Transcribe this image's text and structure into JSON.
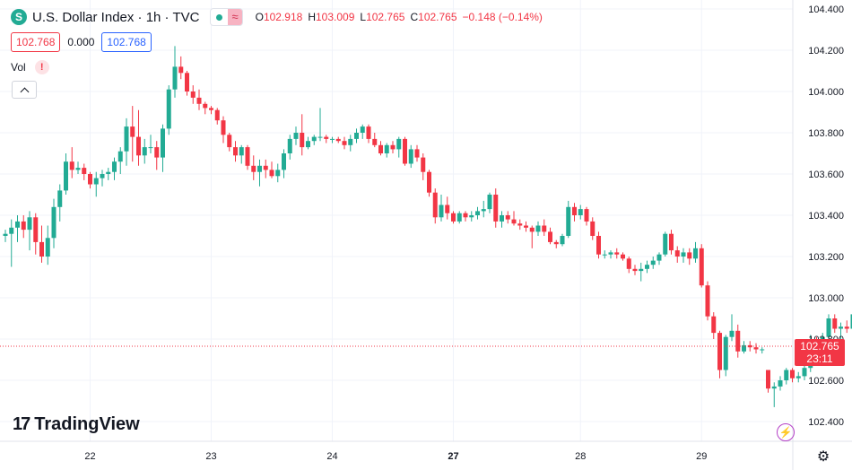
{
  "header": {
    "symbol_icon": "S",
    "title": "U.S. Dollar Index · 1h · TVC",
    "wave_icon": "≈",
    "ohlc": {
      "o_label": "O",
      "o_value": "102.918",
      "h_label": "H",
      "h_value": "103.009",
      "l_label": "L",
      "l_value": "102.765",
      "c_label": "C",
      "c_value": "102.765",
      "change": "−0.148 (−0.14%)"
    }
  },
  "value_row": {
    "price_left": "102.768",
    "spread": "0.000",
    "price_right": "102.768"
  },
  "volume": {
    "label": "Vol",
    "warning_icon": "!"
  },
  "brand": {
    "mark": "17",
    "name": "TradingView"
  },
  "last_price_label": {
    "price": "102.765",
    "countdown": "23:11"
  },
  "colors": {
    "up": "#22ab94",
    "down": "#f23645",
    "grid": "#f0f3fa",
    "text": "#131722"
  },
  "chart_data": {
    "type": "candlestick",
    "ylim": [
      102.3,
      104.5
    ],
    "y_ticks": [
      "104.400",
      "104.200",
      "104.000",
      "103.800",
      "103.600",
      "103.400",
      "103.200",
      "103.000",
      "102.800",
      "102.600",
      "102.400"
    ],
    "x_ticks": [
      {
        "label": "22",
        "bar": 14,
        "bold": false
      },
      {
        "label": "23",
        "bar": 34,
        "bold": false
      },
      {
        "label": "24",
        "bar": 54,
        "bold": false
      },
      {
        "label": "27",
        "bar": 74,
        "bold": true
      },
      {
        "label": "28",
        "bar": 95,
        "bold": false
      },
      {
        "label": "29",
        "bar": 115,
        "bold": false
      }
    ],
    "last_price": 102.765,
    "candles": [
      [
        103.3,
        103.33,
        103.27,
        103.31
      ],
      [
        103.31,
        103.38,
        103.15,
        103.34
      ],
      [
        103.34,
        103.4,
        103.27,
        103.37
      ],
      [
        103.37,
        103.4,
        103.29,
        103.33
      ],
      [
        103.33,
        103.42,
        103.23,
        103.39
      ],
      [
        103.39,
        103.41,
        103.21,
        103.27
      ],
      [
        103.27,
        103.35,
        103.17,
        103.2
      ],
      [
        103.2,
        103.35,
        103.16,
        103.29
      ],
      [
        103.29,
        103.48,
        103.24,
        103.44
      ],
      [
        103.44,
        103.55,
        103.37,
        103.52
      ],
      [
        103.52,
        103.7,
        103.5,
        103.66
      ],
      [
        103.66,
        103.73,
        103.58,
        103.62
      ],
      [
        103.62,
        103.66,
        103.6,
        103.63
      ],
      [
        103.63,
        103.65,
        103.57,
        103.6
      ],
      [
        103.6,
        103.61,
        103.53,
        103.55
      ],
      [
        103.55,
        103.61,
        103.49,
        103.58
      ],
      [
        103.58,
        103.62,
        103.54,
        103.6
      ],
      [
        103.6,
        103.63,
        103.57,
        103.61
      ],
      [
        103.61,
        103.68,
        103.57,
        103.66
      ],
      [
        103.66,
        103.73,
        103.6,
        103.71
      ],
      [
        103.71,
        103.87,
        103.64,
        103.83
      ],
      [
        103.83,
        103.93,
        103.66,
        103.78
      ],
      [
        103.78,
        103.91,
        103.64,
        103.69
      ],
      [
        103.69,
        103.77,
        103.65,
        103.73
      ],
      [
        103.73,
        103.79,
        103.7,
        103.73
      ],
      [
        103.73,
        103.76,
        103.62,
        103.68
      ],
      [
        103.68,
        103.84,
        103.61,
        103.82
      ],
      [
        103.82,
        104.03,
        103.79,
        104.01
      ],
      [
        104.01,
        104.22,
        103.97,
        104.12
      ],
      [
        104.12,
        104.17,
        104.06,
        104.09
      ],
      [
        104.09,
        104.1,
        103.98,
        104.0
      ],
      [
        104.0,
        104.03,
        103.94,
        103.97
      ],
      [
        103.97,
        104.01,
        103.91,
        103.94
      ],
      [
        103.94,
        103.95,
        103.89,
        103.92
      ],
      [
        103.92,
        103.93,
        103.89,
        103.91
      ],
      [
        103.91,
        103.92,
        103.84,
        103.86
      ],
      [
        103.86,
        103.88,
        103.75,
        103.79
      ],
      [
        103.79,
        103.8,
        103.71,
        103.73
      ],
      [
        103.73,
        103.76,
        103.66,
        103.69
      ],
      [
        103.69,
        103.74,
        103.65,
        103.73
      ],
      [
        103.73,
        103.74,
        103.62,
        103.64
      ],
      [
        103.64,
        103.69,
        103.57,
        103.61
      ],
      [
        103.61,
        103.67,
        103.54,
        103.64
      ],
      [
        103.64,
        103.67,
        103.58,
        103.62
      ],
      [
        103.62,
        103.66,
        103.58,
        103.59
      ],
      [
        103.59,
        103.65,
        103.56,
        103.62
      ],
      [
        103.62,
        103.72,
        103.58,
        103.7
      ],
      [
        103.7,
        103.79,
        103.67,
        103.77
      ],
      [
        103.77,
        103.83,
        103.74,
        103.8
      ],
      [
        103.8,
        103.89,
        103.69,
        103.73
      ],
      [
        103.73,
        103.78,
        103.72,
        103.76
      ],
      [
        103.76,
        103.79,
        103.74,
        103.78
      ],
      [
        103.78,
        103.92,
        103.76,
        103.78
      ],
      [
        103.78,
        103.79,
        103.75,
        103.77
      ],
      [
        103.77,
        103.78,
        103.75,
        103.77
      ],
      [
        103.77,
        103.78,
        103.75,
        103.76
      ],
      [
        103.76,
        103.78,
        103.72,
        103.74
      ],
      [
        103.74,
        103.79,
        103.71,
        103.77
      ],
      [
        103.77,
        103.82,
        103.75,
        103.8
      ],
      [
        103.8,
        103.84,
        103.77,
        103.83
      ],
      [
        103.83,
        103.84,
        103.75,
        103.77
      ],
      [
        103.77,
        103.8,
        103.73,
        103.74
      ],
      [
        103.74,
        103.76,
        103.69,
        103.7
      ],
      [
        103.7,
        103.75,
        103.68,
        103.74
      ],
      [
        103.74,
        103.76,
        103.7,
        103.72
      ],
      [
        103.72,
        103.78,
        103.68,
        103.77
      ],
      [
        103.77,
        103.78,
        103.64,
        103.65
      ],
      [
        103.65,
        103.74,
        103.63,
        103.72
      ],
      [
        103.72,
        103.74,
        103.66,
        103.68
      ],
      [
        103.68,
        103.7,
        103.57,
        103.61
      ],
      [
        103.61,
        103.62,
        103.49,
        103.51
      ],
      [
        103.51,
        103.53,
        103.36,
        103.39
      ],
      [
        103.39,
        103.5,
        103.37,
        103.45
      ],
      [
        103.45,
        103.49,
        103.38,
        103.41
      ],
      [
        103.41,
        103.42,
        103.36,
        103.37
      ],
      [
        103.37,
        103.42,
        103.36,
        103.41
      ],
      [
        103.41,
        103.42,
        103.37,
        103.39
      ],
      [
        103.39,
        103.42,
        103.37,
        103.4
      ],
      [
        103.4,
        103.44,
        103.38,
        103.42
      ],
      [
        103.42,
        103.47,
        103.39,
        103.43
      ],
      [
        103.43,
        103.51,
        103.41,
        103.5
      ],
      [
        103.5,
        103.53,
        103.34,
        103.37
      ],
      [
        103.37,
        103.42,
        103.34,
        103.4
      ],
      [
        103.4,
        103.42,
        103.36,
        103.38
      ],
      [
        103.38,
        103.42,
        103.35,
        103.36
      ],
      [
        103.36,
        103.38,
        103.33,
        103.35
      ],
      [
        103.35,
        103.37,
        103.32,
        103.34
      ],
      [
        103.34,
        103.35,
        103.24,
        103.32
      ],
      [
        103.32,
        103.37,
        103.3,
        103.35
      ],
      [
        103.35,
        103.38,
        103.3,
        103.32
      ],
      [
        103.32,
        103.34,
        103.26,
        103.27
      ],
      [
        103.27,
        103.28,
        103.24,
        103.26
      ],
      [
        103.26,
        103.31,
        103.25,
        103.3
      ],
      [
        103.3,
        103.47,
        103.29,
        103.44
      ],
      [
        103.44,
        103.46,
        103.37,
        103.4
      ],
      [
        103.4,
        103.45,
        103.38,
        103.43
      ],
      [
        103.43,
        103.44,
        103.35,
        103.37
      ],
      [
        103.37,
        103.39,
        103.28,
        103.3
      ],
      [
        103.3,
        103.32,
        103.19,
        103.21
      ],
      [
        103.21,
        103.23,
        103.19,
        103.21
      ],
      [
        103.21,
        103.23,
        103.19,
        103.22
      ],
      [
        103.22,
        103.24,
        103.19,
        103.21
      ],
      [
        103.21,
        103.22,
        103.18,
        103.19
      ],
      [
        103.19,
        103.2,
        103.12,
        103.14
      ],
      [
        103.14,
        103.16,
        103.11,
        103.13
      ],
      [
        103.13,
        103.17,
        103.08,
        103.14
      ],
      [
        103.14,
        103.18,
        103.12,
        103.16
      ],
      [
        103.16,
        103.2,
        103.14,
        103.18
      ],
      [
        103.18,
        103.22,
        103.16,
        103.21
      ],
      [
        103.21,
        103.32,
        103.2,
        103.31
      ],
      [
        103.31,
        103.33,
        103.21,
        103.23
      ],
      [
        103.23,
        103.25,
        103.17,
        103.2
      ],
      [
        103.2,
        103.24,
        103.17,
        103.22
      ],
      [
        103.22,
        103.24,
        103.16,
        103.19
      ],
      [
        103.19,
        103.27,
        103.17,
        103.24
      ],
      [
        103.24,
        103.26,
        103.05,
        103.06
      ],
      [
        103.06,
        103.08,
        102.89,
        102.91
      ],
      [
        102.91,
        102.93,
        102.8,
        102.83
      ],
      [
        102.83,
        102.84,
        102.61,
        102.65
      ],
      [
        102.65,
        102.82,
        102.62,
        102.81
      ],
      [
        102.81,
        102.92,
        102.79,
        102.84
      ],
      [
        102.84,
        102.87,
        102.71,
        102.74
      ],
      [
        102.74,
        102.79,
        102.73,
        102.77
      ],
      [
        102.77,
        102.79,
        102.74,
        102.76
      ],
      [
        102.76,
        102.78,
        102.73,
        102.75
      ],
      [
        102.75,
        102.76,
        102.73,
        102.75
      ],
      [
        102.65,
        102.65,
        102.54,
        102.56
      ],
      [
        102.56,
        102.59,
        102.47,
        102.57
      ],
      [
        102.57,
        102.62,
        102.55,
        102.6
      ],
      [
        102.6,
        102.66,
        102.58,
        102.65
      ],
      [
        102.65,
        102.66,
        102.59,
        102.61
      ],
      [
        102.61,
        102.64,
        102.59,
        102.62
      ],
      [
        102.62,
        102.68,
        102.6,
        102.66
      ],
      [
        102.66,
        102.82,
        102.64,
        102.79
      ],
      [
        102.79,
        102.81,
        102.7,
        102.72
      ],
      [
        102.72,
        102.83,
        102.7,
        102.81
      ],
      [
        102.81,
        102.92,
        102.79,
        102.9
      ],
      [
        102.9,
        102.92,
        102.83,
        102.85
      ],
      [
        102.85,
        102.88,
        102.8,
        102.86
      ],
      [
        102.86,
        102.89,
        102.83,
        102.85
      ],
      [
        102.85,
        102.93,
        102.82,
        102.92
      ],
      [
        102.92,
        103.01,
        102.76,
        102.765
      ]
    ]
  }
}
